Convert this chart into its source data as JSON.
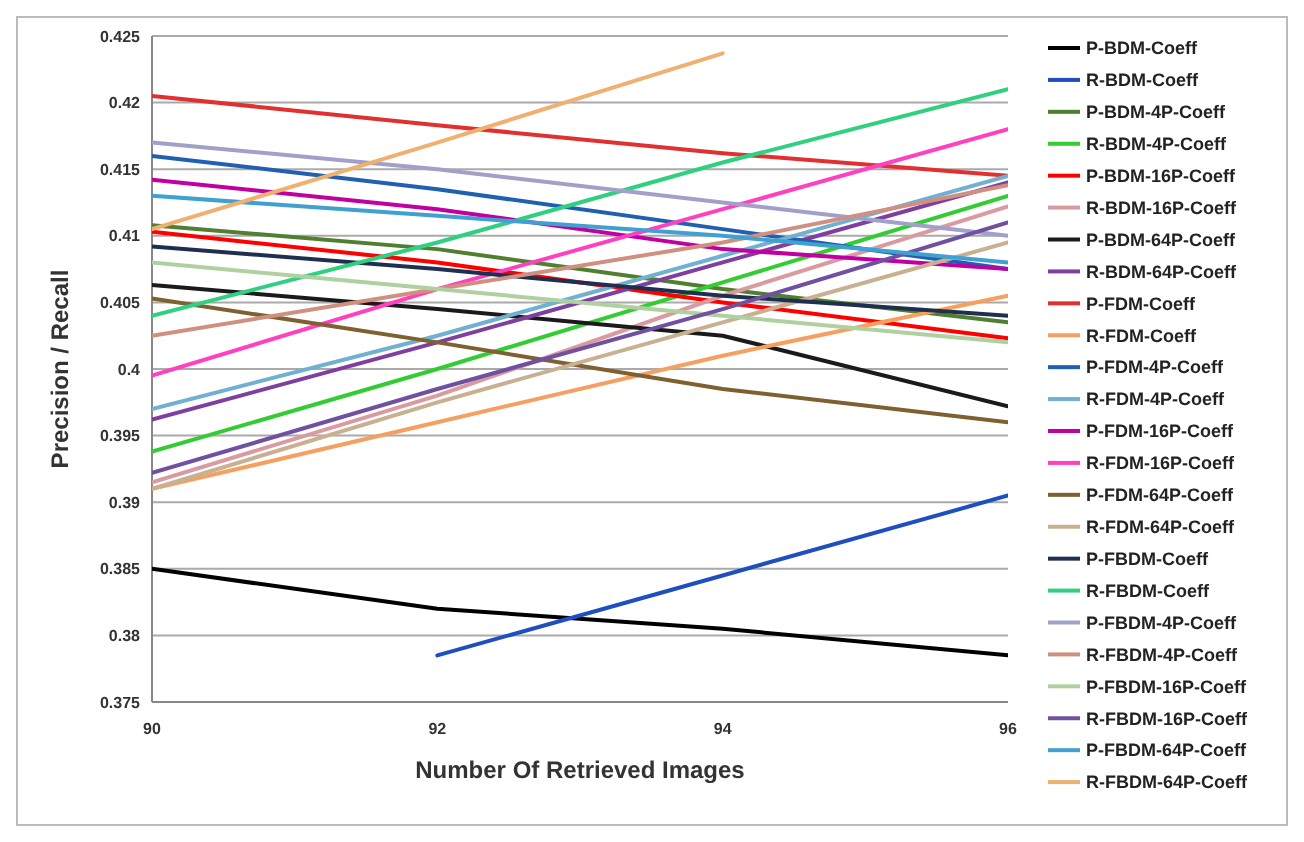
{
  "chart_data": {
    "type": "line",
    "xlabel": "Number Of Retrieved Images",
    "ylabel": "Precision / Recall",
    "x": [
      90,
      92,
      94,
      96
    ],
    "xlim": [
      90,
      96
    ],
    "xticks": [
      90,
      92,
      94,
      96
    ],
    "ylim": [
      0.375,
      0.425
    ],
    "yticks": [
      0.375,
      0.38,
      0.385,
      0.39,
      0.395,
      0.4,
      0.405,
      0.41,
      0.415,
      0.42,
      0.425
    ],
    "grid": "y",
    "legend": "right",
    "marker": "none",
    "line_style": "solid",
    "series": [
      {
        "name": "P-BDM-Coeff",
        "color": "#000000",
        "values": [
          0.385,
          0.382,
          0.3805,
          0.3785
        ]
      },
      {
        "name": "R-BDM-Coeff",
        "color": "#1f4fbf",
        "values": [
          null,
          0.3785,
          0.3845,
          0.3905
        ]
      },
      {
        "name": "P-BDM-4P-Coeff",
        "color": "#4f7f2f",
        "values": [
          0.4108,
          0.409,
          0.406,
          0.4035
        ]
      },
      {
        "name": "R-BDM-4P-Coeff",
        "color": "#33cc33",
        "values": [
          0.3938,
          0.4,
          0.4065,
          0.413
        ]
      },
      {
        "name": "P-BDM-16P-Coeff",
        "color": "#ff0000",
        "values": [
          0.4103,
          0.408,
          0.405,
          0.4023
        ]
      },
      {
        "name": "R-BDM-16P-Coeff",
        "color": "#d99aa0",
        "values": [
          0.3915,
          0.398,
          0.4055,
          0.4122
        ]
      },
      {
        "name": "P-BDM-64P-Coeff",
        "color": "#1a1a1a",
        "values": [
          0.4063,
          0.4045,
          0.4025,
          0.3972
        ]
      },
      {
        "name": "R-BDM-64P-Coeff",
        "color": "#7f3f9f",
        "values": [
          0.3962,
          0.402,
          0.408,
          0.414
        ]
      },
      {
        "name": "P-FDM-Coeff",
        "color": "#e03030",
        "values": [
          0.4205,
          0.4183,
          0.4162,
          0.4145
        ]
      },
      {
        "name": "R-FDM-Coeff",
        "color": "#f5a060",
        "values": [
          0.391,
          0.396,
          0.401,
          0.4055
        ]
      },
      {
        "name": "P-FDM-4P-Coeff",
        "color": "#2060b0",
        "values": [
          0.416,
          0.4135,
          0.4105,
          0.4075
        ]
      },
      {
        "name": "R-FDM-4P-Coeff",
        "color": "#70b0d0",
        "values": [
          0.397,
          0.4025,
          0.4085,
          0.4145
        ]
      },
      {
        "name": "P-FDM-16P-Coeff",
        "color": "#c000a0",
        "values": [
          0.4142,
          0.412,
          0.409,
          0.4075
        ]
      },
      {
        "name": "R-FDM-16P-Coeff",
        "color": "#ff40c0",
        "values": [
          0.3995,
          0.406,
          0.412,
          0.418
        ]
      },
      {
        "name": "P-FDM-64P-Coeff",
        "color": "#7f6030",
        "values": [
          0.4053,
          0.402,
          0.3985,
          0.396
        ]
      },
      {
        "name": "R-FDM-64P-Coeff",
        "color": "#c8b090",
        "values": [
          0.391,
          0.3975,
          0.4035,
          0.4095
        ]
      },
      {
        "name": "P-FBDM-Coeff",
        "color": "#1f2f4f",
        "values": [
          0.4092,
          0.4075,
          0.4055,
          0.404
        ]
      },
      {
        "name": "R-FBDM-Coeff",
        "color": "#30d080",
        "values": [
          0.404,
          0.4095,
          0.4155,
          0.421
        ]
      },
      {
        "name": "P-FBDM-4P-Coeff",
        "color": "#a0a0c8",
        "values": [
          0.417,
          0.415,
          0.4125,
          0.41
        ]
      },
      {
        "name": "R-FBDM-4P-Coeff",
        "color": "#d09080",
        "values": [
          0.4025,
          0.406,
          0.4095,
          0.4138
        ]
      },
      {
        "name": "P-FBDM-16P-Coeff",
        "color": "#b0d0a0",
        "values": [
          0.408,
          0.406,
          0.404,
          0.402
        ]
      },
      {
        "name": "R-FBDM-16P-Coeff",
        "color": "#7050a0",
        "values": [
          0.3922,
          0.3985,
          0.4045,
          0.411
        ]
      },
      {
        "name": "P-FBDM-64P-Coeff",
        "color": "#40a0d0",
        "values": [
          0.413,
          0.4115,
          0.41,
          0.408
        ]
      },
      {
        "name": "R-FBDM-64P-Coeff",
        "color": "#f0b070",
        "values": [
          0.4105,
          0.417,
          0.4237,
          null
        ]
      }
    ]
  }
}
